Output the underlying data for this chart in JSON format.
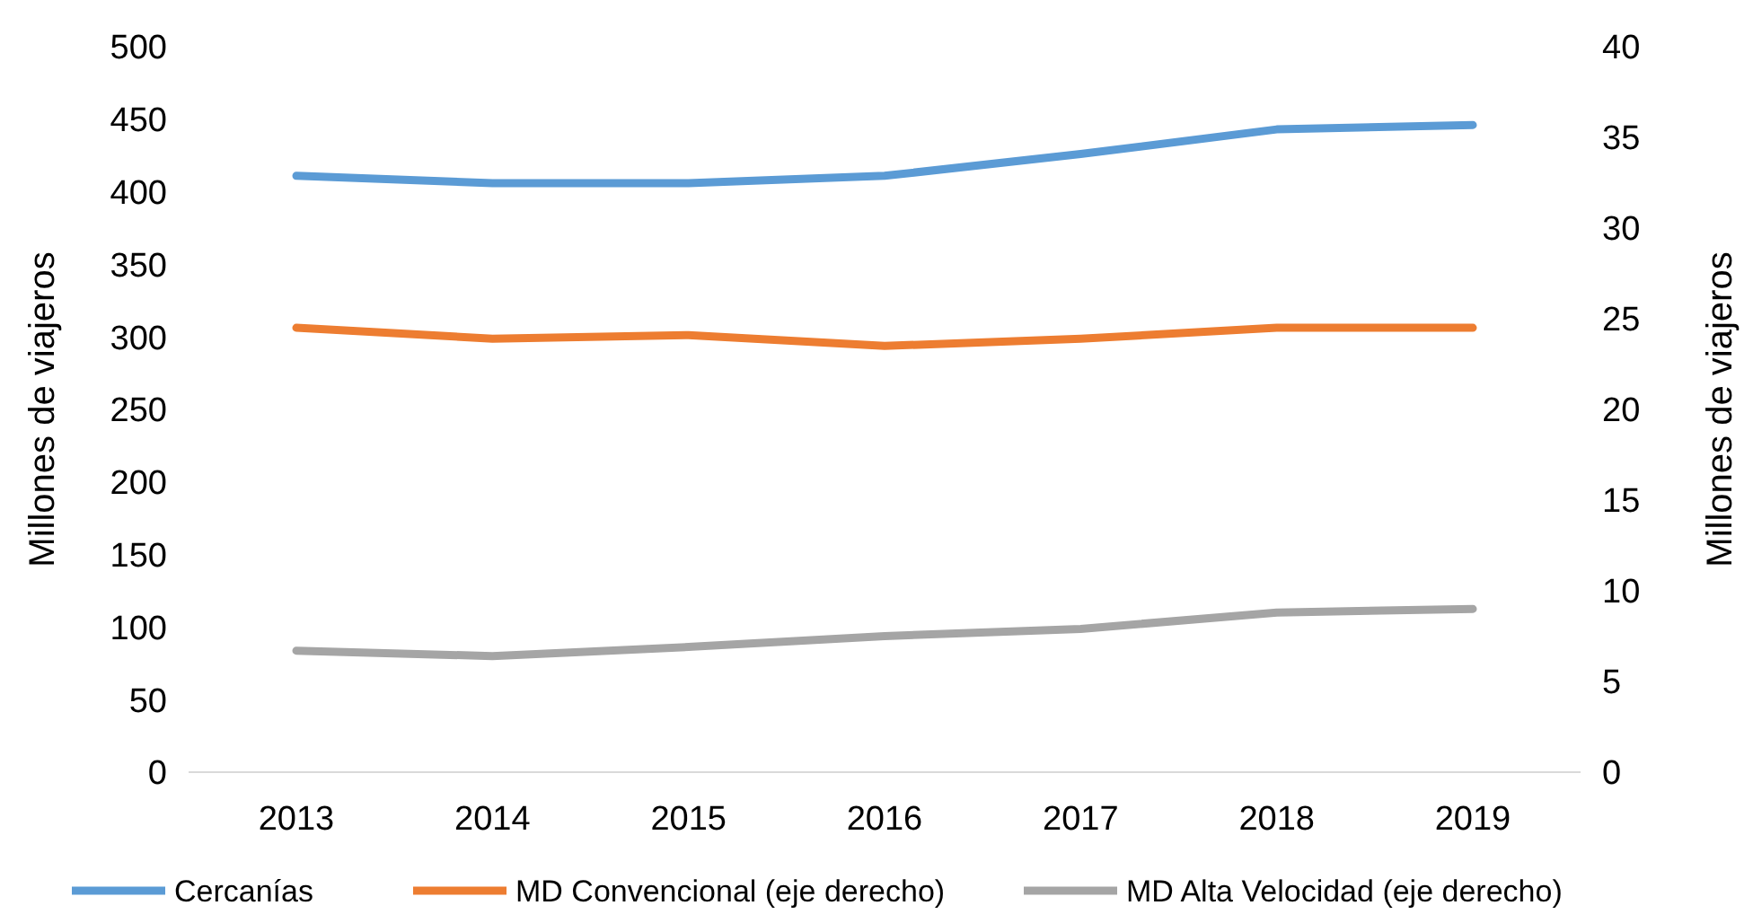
{
  "chart_data": {
    "type": "line",
    "ylabel": "Millones de viajeros",
    "y2label": "Millones de viajeros",
    "categories": [
      "2013",
      "2014",
      "2015",
      "2016",
      "2017",
      "2018",
      "2019"
    ],
    "series": [
      {
        "name": "Cercanías",
        "color": "#5b9bd5",
        "values": [
          411,
          406,
          406,
          411,
          426,
          443,
          446
        ]
      },
      {
        "name": "MD Convencional (eje derecho)",
        "color": "#ed7d31",
        "axis": "y2",
        "values": [
          24.5,
          23.9,
          24.1,
          23.5,
          23.9,
          24.5,
          24.5
        ]
      },
      {
        "name": "MD Alta Velocidad (eje derecho)",
        "color": "#a5a5a5",
        "axis": "y2",
        "values": [
          6.7,
          6.4,
          6.9,
          7.5,
          7.9,
          8.8,
          9.0
        ]
      }
    ],
    "ylim": [
      0,
      500
    ],
    "yticks": [
      0,
      50,
      100,
      150,
      200,
      250,
      300,
      350,
      400,
      450,
      500
    ],
    "y2lim": [
      0,
      40
    ],
    "y2ticks": [
      0,
      5,
      10,
      15,
      20,
      25,
      30,
      35,
      40
    ],
    "grid": false,
    "legend": "bottom",
    "marker": "none",
    "line_style": "solid"
  }
}
